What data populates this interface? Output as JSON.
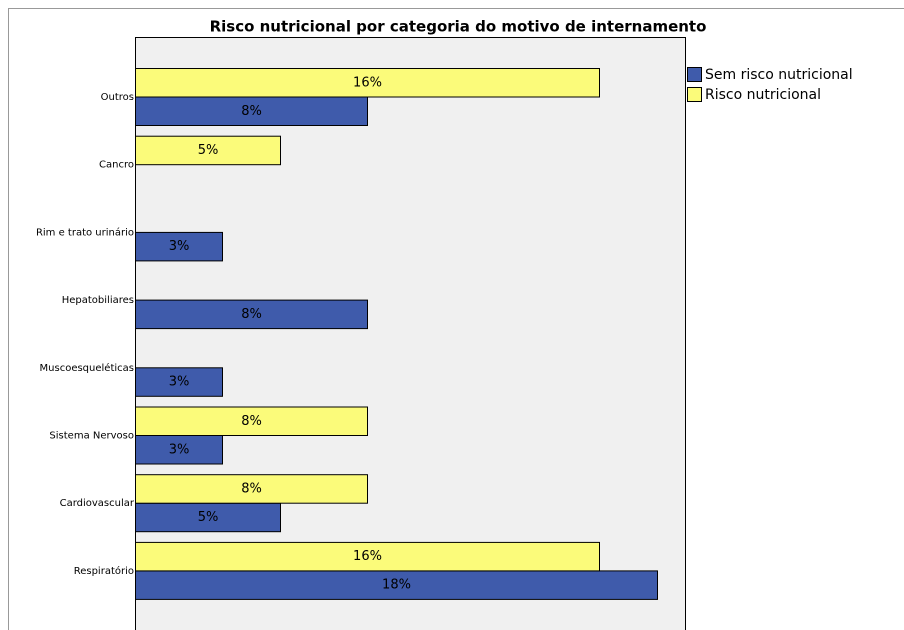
{
  "chart_data": {
    "type": "bar",
    "orientation": "horizontal",
    "title": "Risco nutricional por categoria do motivo de internamento",
    "categories": [
      "Outros",
      "Cancro",
      "Rim e trato urinário",
      "Hepatobiliares",
      "Muscoesqueléticas",
      "Sistema Nervoso",
      "Cardiovascular",
      "Respiratório"
    ],
    "series": [
      {
        "name": "Sem risco nutricional",
        "color": "#3f5bab",
        "values": [
          8,
          null,
          3,
          8,
          3,
          3,
          5,
          18
        ],
        "value_labels": [
          "8%",
          null,
          "3%",
          "8%",
          "3%",
          "3%",
          "5%",
          "18%"
        ]
      },
      {
        "name": "Risco nutricional",
        "color": "#fbfb7a",
        "values": [
          16,
          5,
          null,
          null,
          null,
          8,
          8,
          16
        ],
        "value_labels": [
          "16%",
          "5%",
          null,
          null,
          null,
          "8%",
          "8%",
          "16%"
        ]
      }
    ]
  }
}
